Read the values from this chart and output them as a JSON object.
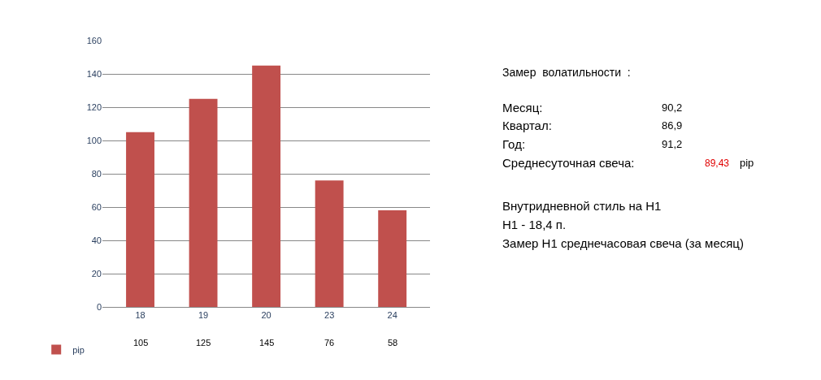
{
  "chart_data": {
    "type": "bar",
    "categories": [
      "18",
      "19",
      "20",
      "23",
      "24"
    ],
    "series": [
      {
        "name": "pip",
        "color": "#c0504d",
        "values": [
          105,
          125,
          145,
          76,
          58
        ]
      }
    ],
    "ylim": [
      0,
      160
    ],
    "yticks": [
      0,
      20,
      40,
      60,
      80,
      100,
      120,
      140,
      160
    ],
    "grid": "y",
    "legend": "bottom left",
    "data_labels": true,
    "annotations": [
      "Замер  волатильности  :",
      "Месяц:",
      "90,2",
      "Квартал:",
      "86,9",
      "Год:",
      "91,2",
      "Среднесуточная свеча:",
      "89,43",
      "pip",
      "Внутридневной стиль на H1",
      "H1 - 18,4 п.",
      "Замер H1 среднечасовая свеча (за месяц)"
    ]
  }
}
